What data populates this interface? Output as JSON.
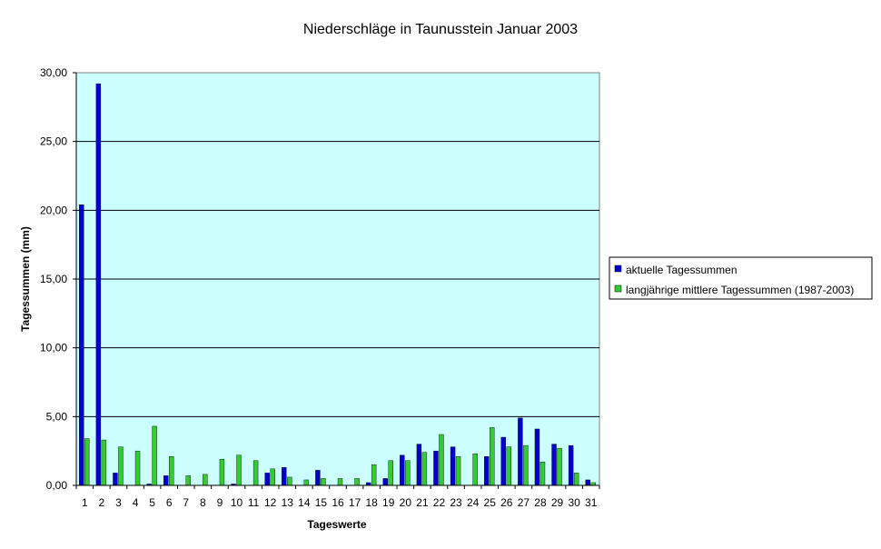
{
  "chart_data": {
    "type": "bar",
    "title": "Niederschläge in Taunusstein  Januar  2003",
    "xlabel": "Tageswerte",
    "ylabel": "Tagessummen (mm)",
    "ylim": [
      0,
      30
    ],
    "yticks": [
      "0,00",
      "5,00",
      "10,00",
      "15,00",
      "20,00",
      "25,00",
      "30,00"
    ],
    "ytick_values": [
      0,
      5,
      10,
      15,
      20,
      25,
      30
    ],
    "grid": true,
    "legend_position": "right",
    "plot_background": "#ccffff",
    "categories": [
      "1",
      "2",
      "3",
      "4",
      "5",
      "6",
      "7",
      "8",
      "9",
      "10",
      "11",
      "12",
      "13",
      "14",
      "15",
      "16",
      "17",
      "18",
      "19",
      "20",
      "21",
      "22",
      "23",
      "24",
      "25",
      "26",
      "27",
      "28",
      "29",
      "30",
      "31"
    ],
    "series": [
      {
        "name": "aktuelle Tagessummen",
        "color": "#0000cc",
        "values": [
          20.4,
          29.2,
          0.9,
          0,
          0.1,
          0.7,
          0,
          0,
          0,
          0.1,
          0,
          0.9,
          1.3,
          0,
          1.1,
          0,
          0,
          0.2,
          0.5,
          2.2,
          3.0,
          2.5,
          2.8,
          0,
          2.1,
          3.5,
          4.9,
          4.1,
          3.0,
          2.9,
          0.4
        ]
      },
      {
        "name": "langjährige mittlere Tagessummen (1987-2003)",
        "color": "#33cc33",
        "values": [
          3.4,
          3.3,
          2.8,
          2.5,
          4.3,
          2.1,
          0.7,
          0.8,
          1.9,
          2.2,
          1.8,
          1.2,
          0.6,
          0.4,
          0.5,
          0.5,
          0.5,
          1.5,
          1.8,
          1.8,
          2.4,
          3.7,
          2.1,
          2.3,
          4.2,
          2.8,
          2.9,
          1.7,
          2.7,
          0.9,
          0.2
        ]
      }
    ]
  }
}
